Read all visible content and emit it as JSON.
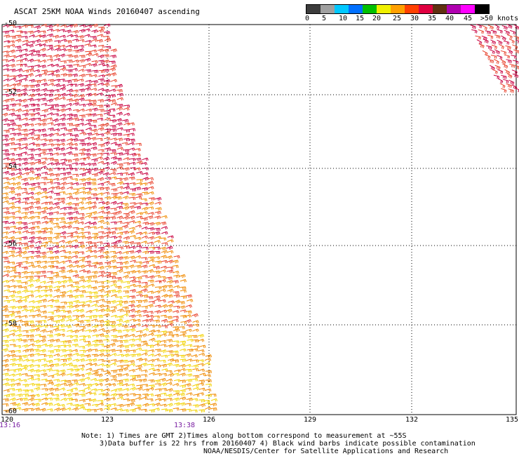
{
  "title": "ASCAT 25KM NOAA Winds 20160407 ascending",
  "colorbar": {
    "colors": [
      "#3c3c3c",
      "#a0a0a0",
      "#00c8ff",
      "#0070ff",
      "#00c000",
      "#f0f000",
      "#ffa000",
      "#ff4000",
      "#e00040",
      "#603010",
      "#b000b0",
      "#ff00ff",
      "#000000"
    ],
    "labels": [
      "0",
      "5",
      "10",
      "15",
      "20",
      "25",
      "30",
      "35",
      "40",
      "45",
      ">50 knots"
    ]
  },
  "axes": {
    "lat_labels": [
      "-50",
      "-52",
      "-54",
      "-56",
      "-58",
      "-60"
    ],
    "lon_labels": [
      "120",
      "123",
      "126",
      "129",
      "132",
      "135"
    ]
  },
  "times": [
    "13:16",
    "13:38"
  ],
  "notes": {
    "line1": "Note: 1) Times are GMT 2)Times along bottom correspond to measurement at ~55S",
    "line2": "3)Data buffer is 22 hrs from 20160407 4) Black wind barbs indicate possible contamination",
    "line3": "NOAA/NESDIS/Center for Satellite Applications and Research"
  },
  "wind_colors": {
    "low": "#f2d200",
    "mid": "#f08a00",
    "high": "#e8402a",
    "max": "#c80040"
  }
}
